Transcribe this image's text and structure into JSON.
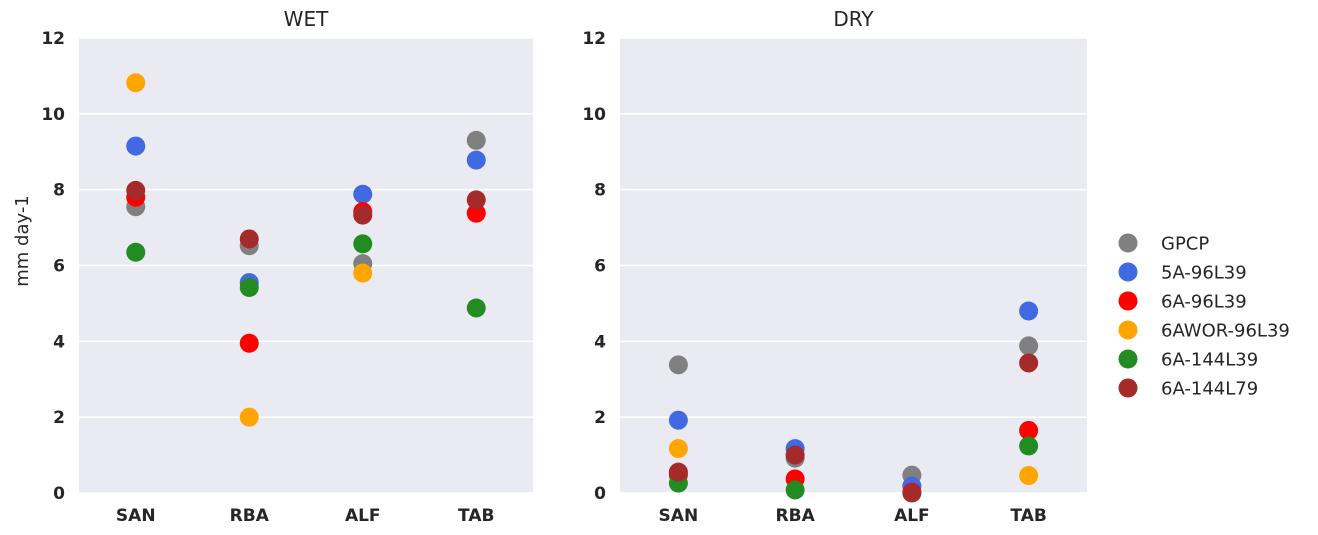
{
  "ylabel": "mm day-1",
  "chart_data": [
    {
      "type": "scatter",
      "title": "WET",
      "xlabel": "",
      "ylabel": "mm day-1",
      "categories": [
        "SAN",
        "RBA",
        "ALF",
        "TAB"
      ],
      "ylim": [
        0,
        12
      ],
      "yticks": [
        0,
        2,
        4,
        6,
        8,
        10,
        12
      ],
      "grid": true,
      "series": [
        {
          "name": "GPCP",
          "color": "#808080",
          "values": [
            7.55,
            6.52,
            6.05,
            9.3
          ]
        },
        {
          "name": "5A-96L39",
          "color": "#4169E1",
          "values": [
            9.15,
            5.55,
            7.88,
            8.78
          ]
        },
        {
          "name": "6A-96L39",
          "color": "#FF0000",
          "values": [
            7.8,
            3.95,
            7.42,
            7.38
          ]
        },
        {
          "name": "6AWOR-96L39",
          "color": "#FFA500",
          "values": [
            10.82,
            2.0,
            5.8,
            null
          ]
        },
        {
          "name": "6A-144L39",
          "color": "#228B22",
          "values": [
            6.35,
            5.42,
            6.57,
            4.88
          ]
        },
        {
          "name": "6A-144L79",
          "color": "#A52A2A",
          "values": [
            7.98,
            6.7,
            7.33,
            7.73
          ]
        }
      ]
    },
    {
      "type": "scatter",
      "title": "DRY",
      "xlabel": "",
      "ylabel": "",
      "categories": [
        "SAN",
        "RBA",
        "ALF",
        "TAB"
      ],
      "ylim": [
        0,
        12
      ],
      "yticks": [
        0,
        2,
        4,
        6,
        8,
        10,
        12
      ],
      "grid": true,
      "series": [
        {
          "name": "GPCP",
          "color": "#808080",
          "values": [
            3.38,
            0.92,
            0.47,
            3.88
          ]
        },
        {
          "name": "5A-96L39",
          "color": "#4169E1",
          "values": [
            1.92,
            1.17,
            0.18,
            4.8
          ]
        },
        {
          "name": "6A-96L39",
          "color": "#FF0000",
          "values": [
            0.48,
            0.37,
            0.02,
            1.65
          ]
        },
        {
          "name": "6AWOR-96L39",
          "color": "#FFA500",
          "values": [
            1.17,
            null,
            null,
            0.46
          ]
        },
        {
          "name": "6A-144L39",
          "color": "#228B22",
          "values": [
            0.26,
            0.08,
            null,
            1.24
          ]
        },
        {
          "name": "6A-144L79",
          "color": "#A52A2A",
          "values": [
            0.55,
            1.0,
            0.0,
            3.43
          ]
        }
      ]
    }
  ],
  "legend": {
    "placement": "right",
    "entries": [
      {
        "label": "GPCP",
        "color": "#808080"
      },
      {
        "label": "5A-96L39",
        "color": "#4169E1"
      },
      {
        "label": "6A-96L39",
        "color": "#FF0000"
      },
      {
        "label": "6AWOR-96L39",
        "color": "#FFA500"
      },
      {
        "label": "6A-144L39",
        "color": "#228B22"
      },
      {
        "label": "6A-144L79",
        "color": "#A52A2A"
      }
    ]
  },
  "style": {
    "plot_background": "#EAEAF2",
    "grid_color": "#FFFFFF"
  }
}
